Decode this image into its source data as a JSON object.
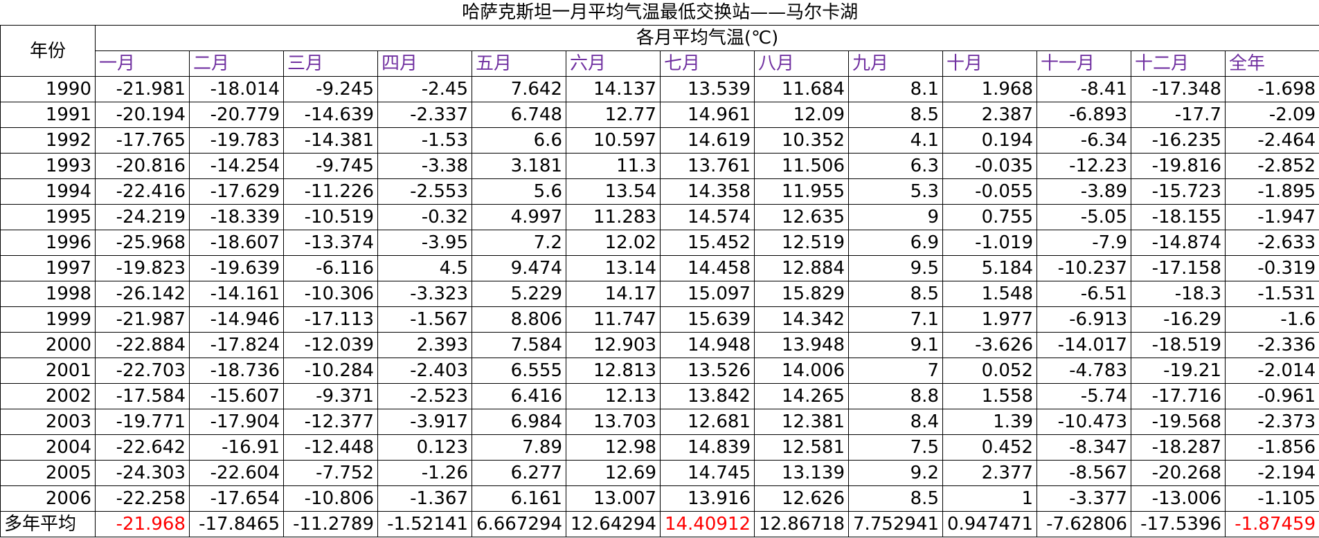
{
  "title": "哈萨克斯坦一月平均气温最低交换站——马尔卡湖",
  "year_header": "年份",
  "monthly_header": "各月平均气温(℃)",
  "months": [
    "一月",
    "二月",
    "三月",
    "四月",
    "五月",
    "六月",
    "七月",
    "八月",
    "九月",
    "十月",
    "十一月",
    "十二月",
    "全年"
  ],
  "rows": [
    {
      "year": "1990",
      "values": [
        "-21.981",
        "-18.014",
        "-9.245",
        "-2.45",
        "7.642",
        "14.137",
        "13.539",
        "11.684",
        "8.1",
        "1.968",
        "-8.41",
        "-17.348",
        "-1.698"
      ]
    },
    {
      "year": "1991",
      "values": [
        "-20.194",
        "-20.779",
        "-14.639",
        "-2.337",
        "6.748",
        "12.77",
        "14.961",
        "12.09",
        "8.5",
        "2.387",
        "-6.893",
        "-17.7",
        "-2.09"
      ]
    },
    {
      "year": "1992",
      "values": [
        "-17.765",
        "-19.783",
        "-14.381",
        "-1.53",
        "6.6",
        "10.597",
        "14.619",
        "10.352",
        "4.1",
        "0.194",
        "-6.34",
        "-16.235",
        "-2.464"
      ]
    },
    {
      "year": "1993",
      "values": [
        "-20.816",
        "-14.254",
        "-9.745",
        "-3.38",
        "3.181",
        "11.3",
        "13.761",
        "11.506",
        "6.3",
        "-0.035",
        "-12.23",
        "-19.816",
        "-2.852"
      ]
    },
    {
      "year": "1994",
      "values": [
        "-22.416",
        "-17.629",
        "-11.226",
        "-2.553",
        "5.6",
        "13.54",
        "14.358",
        "11.955",
        "5.3",
        "-0.055",
        "-3.89",
        "-15.723",
        "-1.895"
      ]
    },
    {
      "year": "1995",
      "values": [
        "-24.219",
        "-18.339",
        "-10.519",
        "-0.32",
        "4.997",
        "11.283",
        "14.574",
        "12.635",
        "9",
        "0.755",
        "-5.05",
        "-18.155",
        "-1.947"
      ]
    },
    {
      "year": "1996",
      "values": [
        "-25.968",
        "-18.607",
        "-13.374",
        "-3.95",
        "7.2",
        "12.02",
        "15.452",
        "12.519",
        "6.9",
        "-1.019",
        "-7.9",
        "-14.874",
        "-2.633"
      ]
    },
    {
      "year": "1997",
      "values": [
        "-19.823",
        "-19.639",
        "-6.116",
        "4.5",
        "9.474",
        "13.14",
        "14.458",
        "12.884",
        "9.5",
        "5.184",
        "-10.237",
        "-17.158",
        "-0.319"
      ]
    },
    {
      "year": "1998",
      "values": [
        "-26.142",
        "-14.161",
        "-10.306",
        "-3.323",
        "5.229",
        "14.17",
        "15.097",
        "15.829",
        "8.5",
        "1.548",
        "-6.51",
        "-18.3",
        "-1.531"
      ]
    },
    {
      "year": "1999",
      "values": [
        "-21.987",
        "-14.946",
        "-17.113",
        "-1.567",
        "8.806",
        "11.747",
        "15.639",
        "14.342",
        "7.1",
        "1.977",
        "-6.913",
        "-16.29",
        "-1.6"
      ]
    },
    {
      "year": "2000",
      "values": [
        "-22.884",
        "-17.824",
        "-12.039",
        "2.393",
        "7.584",
        "12.903",
        "14.948",
        "13.948",
        "9.1",
        "-3.626",
        "-14.017",
        "-18.519",
        "-2.336"
      ]
    },
    {
      "year": "2001",
      "values": [
        "-22.703",
        "-18.736",
        "-10.284",
        "-2.403",
        "6.555",
        "12.813",
        "13.526",
        "14.006",
        "7",
        "0.052",
        "-4.783",
        "-19.21",
        "-2.014"
      ]
    },
    {
      "year": "2002",
      "values": [
        "-17.584",
        "-15.607",
        "-9.371",
        "-2.523",
        "6.416",
        "12.13",
        "13.842",
        "14.265",
        "8.8",
        "1.558",
        "-5.74",
        "-17.716",
        "-0.961"
      ]
    },
    {
      "year": "2003",
      "values": [
        "-19.771",
        "-17.904",
        "-12.377",
        "-3.917",
        "6.984",
        "13.703",
        "12.681",
        "12.381",
        "8.4",
        "1.39",
        "-10.473",
        "-19.568",
        "-2.373"
      ]
    },
    {
      "year": "2004",
      "values": [
        "-22.642",
        "-16.91",
        "-12.448",
        "0.123",
        "7.89",
        "12.98",
        "14.839",
        "12.581",
        "7.5",
        "0.452",
        "-8.347",
        "-18.287",
        "-1.856"
      ]
    },
    {
      "year": "2005",
      "values": [
        "-24.303",
        "-22.604",
        "-7.752",
        "-1.26",
        "6.277",
        "12.69",
        "14.745",
        "13.139",
        "9.2",
        "2.377",
        "-8.567",
        "-20.268",
        "-2.194"
      ]
    },
    {
      "year": "2006",
      "values": [
        "-22.258",
        "-17.654",
        "-10.806",
        "-1.367",
        "6.161",
        "13.007",
        "13.916",
        "12.626",
        "8.5",
        "1",
        "-3.377",
        "-13.006",
        "-1.105"
      ]
    }
  ],
  "average_row": {
    "label": "多年平均",
    "values": [
      "-21.968",
      "-17.8465",
      "-11.2789",
      "-1.52141",
      "6.667294",
      "12.64294",
      "14.40912",
      "12.86718",
      "7.752941",
      "0.947471",
      "-7.62806",
      "-17.5396",
      "-1.87459"
    ]
  },
  "colors": {
    "month_header": "#7030a0",
    "highlight": "#ff0000",
    "grid": "#000000"
  },
  "highlighted_average_columns": [
    0,
    6,
    12
  ]
}
